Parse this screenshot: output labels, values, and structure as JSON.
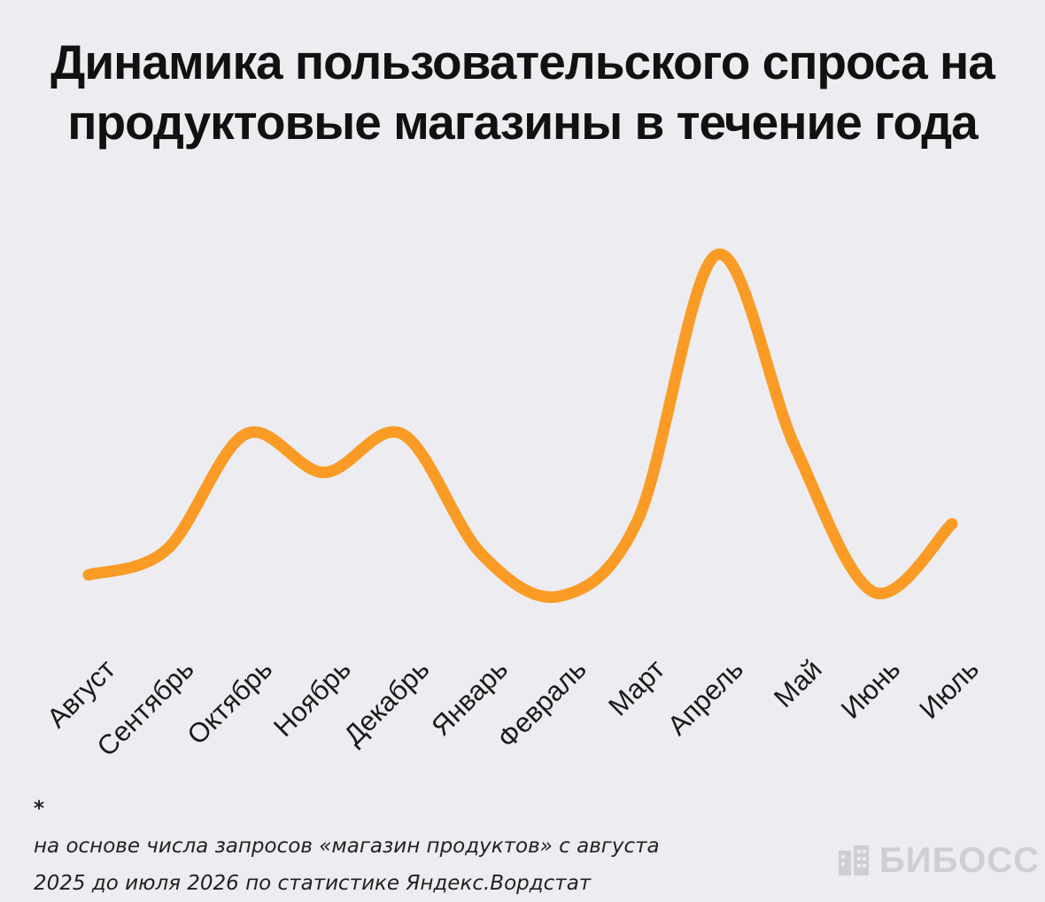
{
  "title_lines": [
    "Динамика пользовательского спроса на",
    "продуктовые магазины в течение года"
  ],
  "footnote": {
    "star": "*",
    "line1": "на основе числа запросов «магазин продуктов» с августа",
    "line2": "2025 до июля 2026 по статистике Яндекс.Вордстат"
  },
  "brand": {
    "name": "БИБОСС",
    "icon": "building-logo-icon",
    "color": "#cfcfd3"
  },
  "colors": {
    "line": "#f99b25",
    "background": "#ededf1"
  },
  "chart_data": {
    "type": "line",
    "title": "Динамика пользовательского спроса на продуктовые магазины в течение года",
    "categories": [
      "Август",
      "Сентябрь",
      "Октябрь",
      "Ноябрь",
      "Декабрь",
      "Январь",
      "Февраль",
      "Март",
      "Апрель",
      "Май",
      "Июнь",
      "Июль"
    ],
    "values": [
      25,
      31,
      58,
      49,
      58,
      30,
      20,
      38,
      100,
      55,
      21,
      37
    ],
    "ylim": [
      0,
      100
    ],
    "grid": false,
    "legend": "none",
    "y_axis_labels": false
  }
}
